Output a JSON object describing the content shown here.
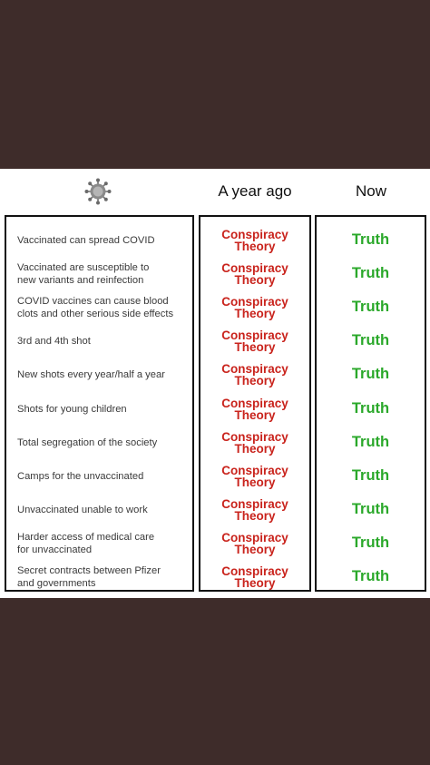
{
  "header": {
    "col_a": "A year ago",
    "col_b": "Now"
  },
  "icon": "coronavirus-icon",
  "colors": {
    "background": "#3e2c2a",
    "conspiracy": "#c9231c",
    "truth": "#2aa82a"
  },
  "rows": [
    {
      "claim_1": "Vaccinated can spread COVID",
      "claim_2": "",
      "then_1": "Conspiracy",
      "then_2": "Theory",
      "now": "Truth"
    },
    {
      "claim_1": "Vaccinated are susceptible to",
      "claim_2": "new variants and reinfection",
      "then_1": "Conspiracy",
      "then_2": "Theory",
      "now": "Truth"
    },
    {
      "claim_1": "COVID vaccines can cause blood",
      "claim_2": "clots and other serious side effects",
      "then_1": "Conspiracy",
      "then_2": "Theory",
      "now": "Truth"
    },
    {
      "claim_1": "3rd and 4th shot",
      "claim_2": "",
      "then_1": "Conspiracy",
      "then_2": "Theory",
      "now": "Truth"
    },
    {
      "claim_1": "New shots every year/half a year",
      "claim_2": "",
      "then_1": "Conspiracy",
      "then_2": "Theory",
      "now": "Truth"
    },
    {
      "claim_1": "Shots for young children",
      "claim_2": "",
      "then_1": "Conspiracy",
      "then_2": "Theory",
      "now": "Truth"
    },
    {
      "claim_1": "Total segregation of the society",
      "claim_2": "",
      "then_1": "Conspiracy",
      "then_2": "Theory",
      "now": "Truth"
    },
    {
      "claim_1": "Camps for the unvaccinated",
      "claim_2": "",
      "then_1": "Conspiracy",
      "then_2": "Theory",
      "now": "Truth"
    },
    {
      "claim_1": "Unvaccinated unable to work",
      "claim_2": "",
      "then_1": "Conspiracy",
      "then_2": "Theory",
      "now": "Truth"
    },
    {
      "claim_1": "Harder access of medical care",
      "claim_2": "for unvaccinated",
      "then_1": "Conspiracy",
      "then_2": "Theory",
      "now": "Truth"
    },
    {
      "claim_1": "Secret contracts between Pfizer",
      "claim_2": "and governments",
      "then_1": "Conspiracy",
      "then_2": "Theory",
      "now": "Truth"
    }
  ]
}
